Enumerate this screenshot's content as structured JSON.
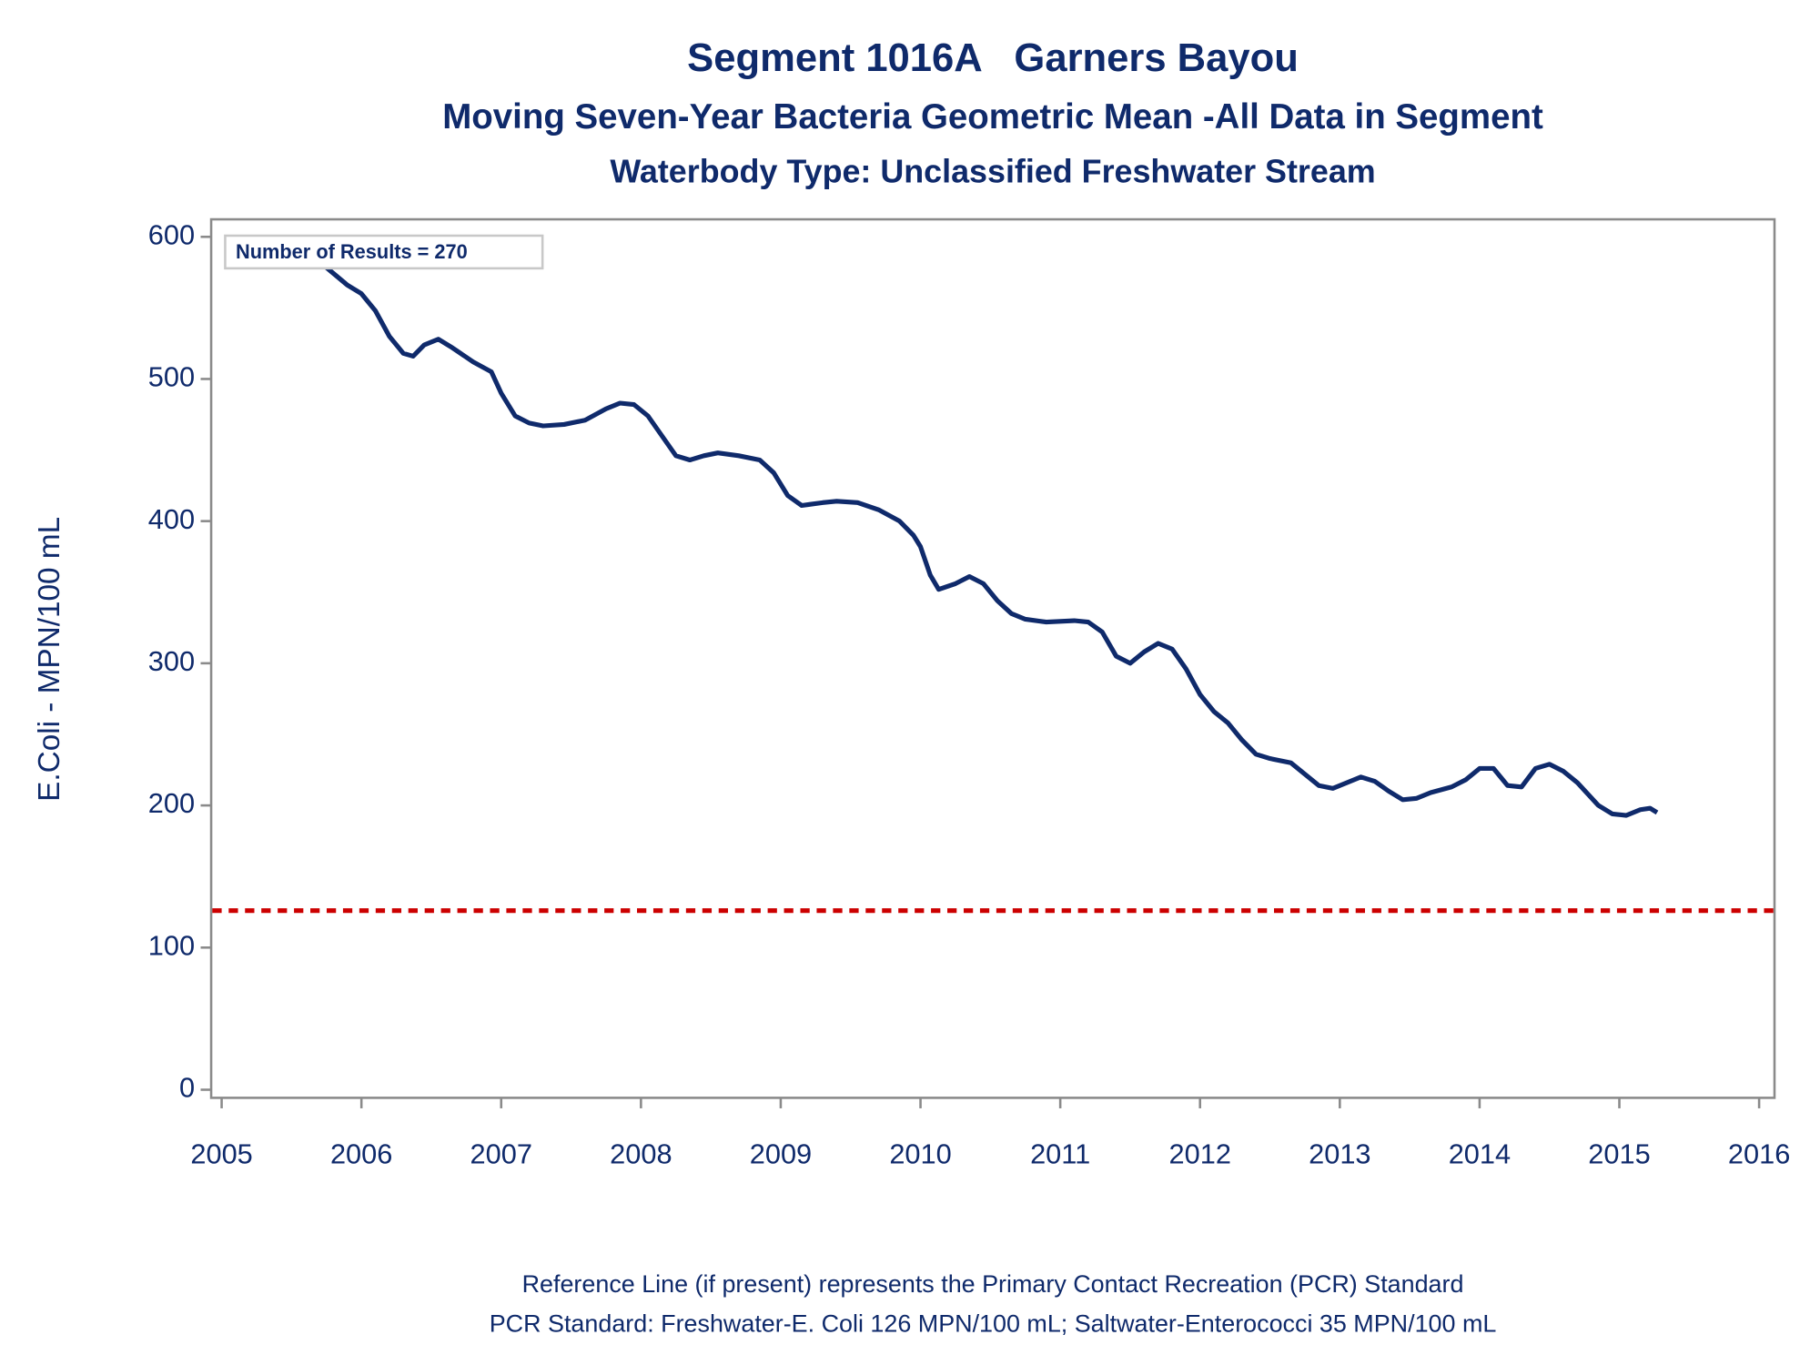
{
  "chart_data": {
    "type": "line",
    "title": "Segment 1016A   Garners Bayou",
    "subtitles": [
      "Moving Seven-Year Bacteria Geometric Mean -All Data in Segment",
      "Waterbody Type: Unclassified Freshwater Stream"
    ],
    "y_label": "E.Coli - MPN/100 mL",
    "annotation": "Number of Results = 270",
    "footnotes": [
      "Reference Line (if present) represents the Primary Contact Recreation (PCR) Standard",
      "PCR Standard: Freshwater-E. Coli 126 MPN/100 mL; Saltwater-Enterococci 35 MPN/100 mL"
    ],
    "x": [
      2005.73,
      2005.9,
      2006.0,
      2006.1,
      2006.2,
      2006.3,
      2006.37,
      2006.45,
      2006.55,
      2006.65,
      2006.8,
      2006.93,
      2007.0,
      2007.1,
      2007.2,
      2007.3,
      2007.45,
      2007.6,
      2007.75,
      2007.85,
      2007.95,
      2008.05,
      2008.15,
      2008.25,
      2008.35,
      2008.45,
      2008.55,
      2008.7,
      2008.85,
      2008.95,
      2009.05,
      2009.15,
      2009.3,
      2009.4,
      2009.55,
      2009.7,
      2009.85,
      2009.95,
      2010.0,
      2010.07,
      2010.13,
      2010.25,
      2010.35,
      2010.45,
      2010.55,
      2010.65,
      2010.75,
      2010.9,
      2011.1,
      2011.2,
      2011.3,
      2011.4,
      2011.5,
      2011.6,
      2011.7,
      2011.8,
      2011.9,
      2012.0,
      2012.1,
      2012.2,
      2012.3,
      2012.4,
      2012.5,
      2012.65,
      2012.75,
      2012.85,
      2012.95,
      2013.05,
      2013.15,
      2013.25,
      2013.35,
      2013.45,
      2013.55,
      2013.65,
      2013.8,
      2013.9,
      2014.0,
      2014.1,
      2014.2,
      2014.3,
      2014.4,
      2014.5,
      2014.6,
      2014.7,
      2014.85,
      2014.95,
      2015.05,
      2015.15,
      2015.22,
      2015.27
    ],
    "series": [
      {
        "color": "#0f2a6b",
        "values": [
          580,
          566,
          560,
          548,
          530,
          518,
          516,
          524,
          528,
          522,
          512,
          505,
          490,
          474,
          469,
          467,
          468,
          471,
          479,
          483,
          482,
          474,
          460,
          446,
          443,
          446,
          448,
          446,
          443,
          434,
          418,
          411,
          413,
          414,
          413,
          408,
          400,
          390,
          382,
          362,
          352,
          356,
          361,
          356,
          344,
          335,
          331,
          329,
          330,
          329,
          322,
          305,
          300,
          308,
          314,
          310,
          296,
          278,
          266,
          258,
          246,
          236,
          233,
          230,
          222,
          214,
          212,
          216,
          220,
          217,
          210,
          204,
          205,
          209,
          213,
          218,
          226,
          226,
          214,
          213,
          226,
          229,
          224,
          216,
          200,
          194,
          193,
          197,
          198,
          195
        ]
      }
    ],
    "reference_line": {
      "value": 126,
      "color": "#cc0000"
    },
    "xlim": [
      2004.925,
      2016.11
    ],
    "ylim": [
      -5.7,
      612.3
    ],
    "xticks": [
      2005,
      2006,
      2007,
      2008,
      2009,
      2010,
      2011,
      2012,
      2013,
      2014,
      2015,
      2016
    ],
    "yticks": [
      0,
      100,
      200,
      300,
      400,
      500,
      600
    ]
  }
}
